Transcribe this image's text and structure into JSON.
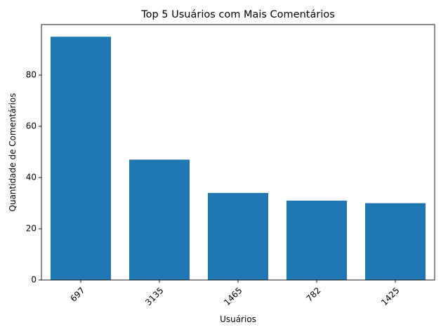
{
  "chart_data": {
    "type": "bar",
    "title": "Top 5 Usuários com Mais Comentários",
    "xlabel": "Usuários",
    "ylabel": "Quantidade de Comentários",
    "categories": [
      "697",
      "3135",
      "1465",
      "782",
      "1425"
    ],
    "values": [
      95,
      47,
      34,
      31,
      30
    ],
    "ylim": [
      0,
      99.75
    ],
    "yticks": [
      0,
      20,
      40,
      60,
      80
    ],
    "xtick_rotation_deg": 45,
    "grid": false,
    "legend": "none",
    "bar_color": "#1f77b4"
  }
}
